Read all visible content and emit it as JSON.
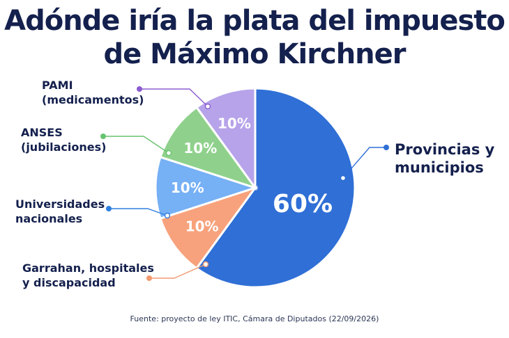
{
  "chart_data": {
    "type": "pie",
    "title": "Adónde iría la plata del impuesto de Máximo Kirchner",
    "title_lines": [
      "Adónde iría la plata del impuesto",
      "de Máximo Kirchner"
    ],
    "source": "Fuente: proyecto de ley ITIC, Cámara de Diputados (22/09/2026)",
    "slices": [
      {
        "label_lines": [
          "Provincias y",
          "municipios"
        ],
        "value": 60,
        "value_label": "60%",
        "color": "#2f6fd6"
      },
      {
        "label_lines": [
          "Garrahan, hospitales",
          "y discapacidad"
        ],
        "value": 10,
        "value_label": "10%",
        "color": "#f7a27c"
      },
      {
        "label_lines": [
          "Universidades",
          "nacionales"
        ],
        "value": 10,
        "value_label": "10%",
        "color": "#76b0f5"
      },
      {
        "label_lines": [
          "ANSES",
          "(jubilaciones)"
        ],
        "value": 10,
        "value_label": "10%",
        "color": "#8fd18c"
      },
      {
        "label_lines": [
          "PAMI",
          "(medicamentos)"
        ],
        "value": 10,
        "value_label": "10%",
        "color": "#b6a3ea"
      }
    ],
    "leader_colors": [
      "#2f6fd6",
      "#f29a6f",
      "#2f7fdf",
      "#66c36e",
      "#8b5bd0"
    ]
  }
}
